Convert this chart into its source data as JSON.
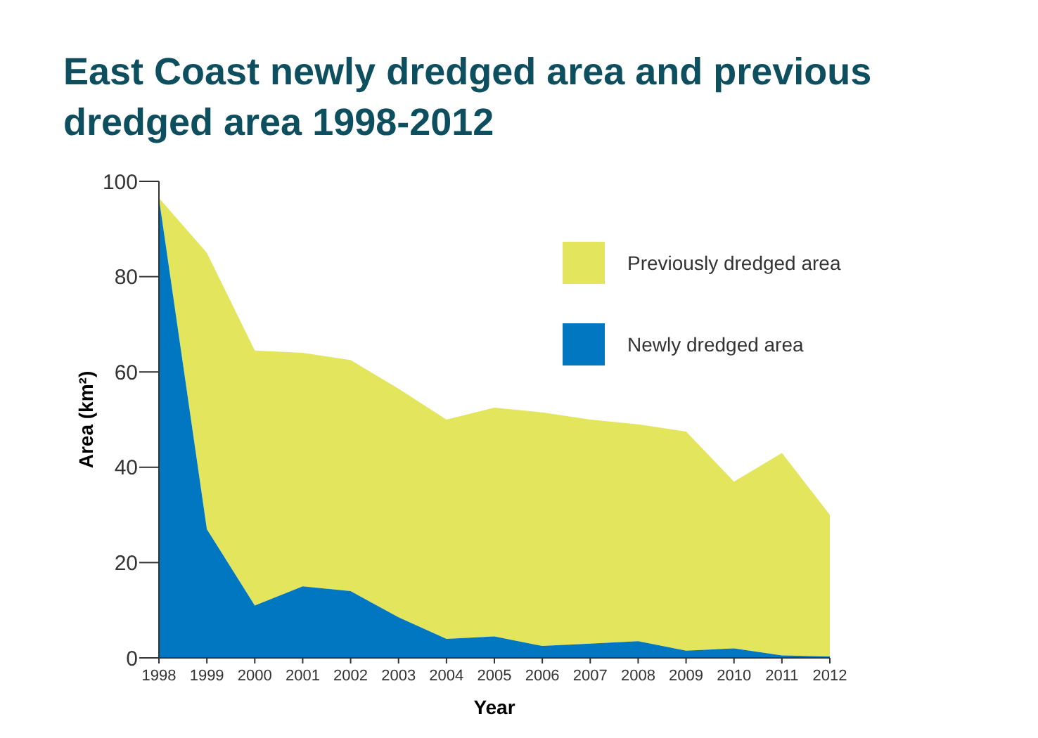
{
  "chart_data": {
    "type": "area",
    "stacked": true,
    "title": "East Coast newly dredged area and previous dredged area 1998-2012",
    "xlabel": "Year",
    "ylabel": "Area (km²)",
    "categories": [
      "1998",
      "1999",
      "2000",
      "2001",
      "2002",
      "2003",
      "2004",
      "2005",
      "2006",
      "2007",
      "2008",
      "2009",
      "2010",
      "2011",
      "2012"
    ],
    "series": [
      {
        "name": "Newly dredged area",
        "color": "#0077c0",
        "values": [
          96.5,
          27,
          11,
          15,
          14,
          8.5,
          4,
          4.5,
          2.5,
          3,
          3.5,
          1.5,
          2,
          0.5,
          0.3
        ]
      },
      {
        "name": "Previously dredged area",
        "color": "#e3e55c",
        "values": [
          0,
          58,
          53.5,
          49,
          48.5,
          48,
          46,
          48,
          49,
          47,
          45.5,
          46,
          35,
          42.5,
          29.7
        ]
      }
    ],
    "ylim": [
      0,
      100
    ],
    "yticks": [
      0,
      20,
      40,
      60,
      80,
      100
    ],
    "legend": "top right"
  }
}
